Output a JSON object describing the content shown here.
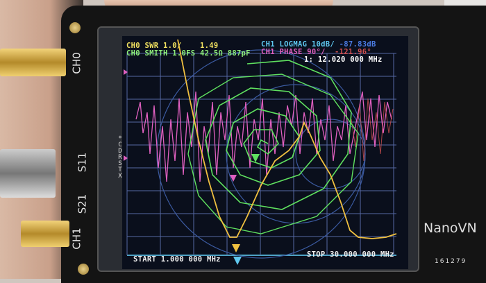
{
  "device": {
    "brand": "NanoVN",
    "serial": "161279",
    "port_labels": {
      "ch0": "CH0",
      "s11": "S11",
      "s21": "S21",
      "ch1": "CH1"
    }
  },
  "screen": {
    "trace_labels": [
      {
        "channel": "CH0",
        "format": "SWR",
        "scale": "1.0/",
        "value": "1.49",
        "color": "#f0e060"
      },
      {
        "channel": "CH0",
        "format": "SMITH",
        "scale": "1.0FS",
        "value": "42.5Ω 887pF",
        "color": "#8ef07a"
      },
      {
        "channel": "CH1",
        "format": "LOGMAG",
        "scale": "10dB/",
        "value": "-87.83dB",
        "color": "#5fc8f0"
      },
      {
        "channel": "CH1",
        "format": "PHASE",
        "scale": "90°/",
        "value": "-121.96°",
        "color": "#e060c0"
      }
    ],
    "marker": "1: 12.020 000 MHz",
    "start": "START 1.000 000 MHz",
    "stop": "STOP 30.000 000 MHz",
    "side_menu": [
      "*",
      "C",
      "D",
      "R",
      "S",
      "T",
      "X"
    ]
  }
}
